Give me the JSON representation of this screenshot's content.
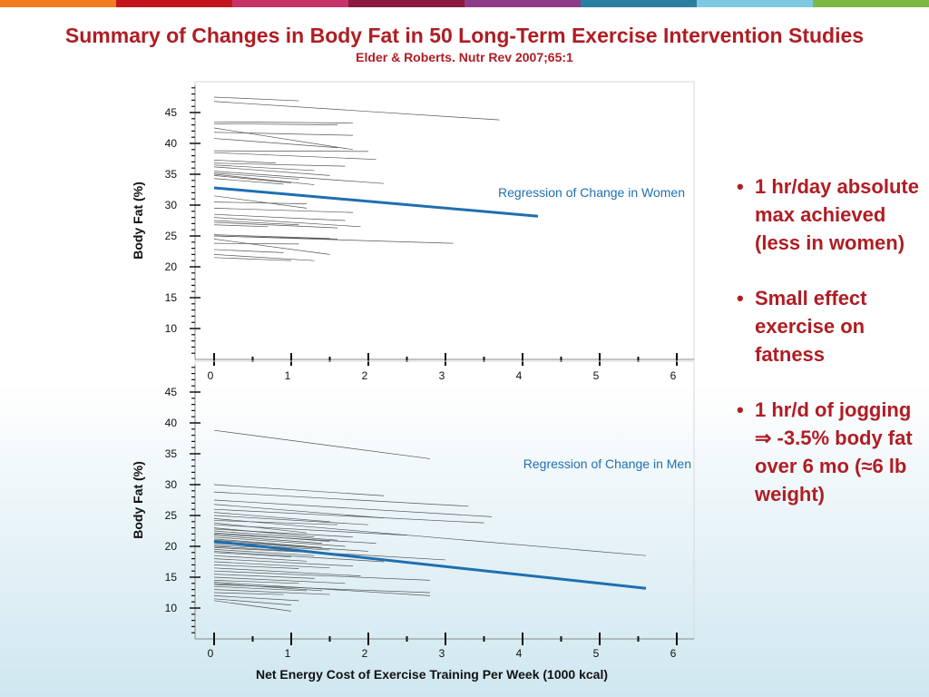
{
  "header": {
    "color_bar": [
      "#f47c20",
      "#c4161c",
      "#c8346a",
      "#8c1a3c",
      "#8e3b8a",
      "#2a7fa0",
      "#7ec8e3",
      "#7db843"
    ]
  },
  "slide": {
    "title": "Summary of Changes in Body Fat in 50 Long-Term Exercise Intervention Studies",
    "subtitle": "Elder & Roberts. Nutr Rev 2007;65:1"
  },
  "bullets": {
    "items": [
      "1 hr/day absolute max achieved (less in women)",
      "Small effect exercise on fatness",
      "1 hr/d of jogging ⇒ -3.5% body fat over 6 mo (≈6 lb weight)"
    ],
    "bullet_char": "•"
  },
  "chart_data": [
    {
      "type": "line",
      "panel": "women",
      "xlabel": "",
      "ylabel": "Body Fat (%)",
      "xlim": [
        0,
        6
      ],
      "ylim": [
        5,
        50
      ],
      "x_ticks": [
        "0",
        "1",
        "2",
        "3",
        "4",
        "5",
        "6"
      ],
      "y_ticks": [
        "10",
        "15",
        "20",
        "25",
        "30",
        "35",
        "40",
        "45"
      ],
      "regression": {
        "label": "Regression of Change in Women",
        "x": [
          0,
          4.2
        ],
        "y": [
          32.8,
          28.2
        ],
        "color": "#1f6fb0"
      },
      "studies": [
        [
          0,
          47.5,
          1.1,
          46.9
        ],
        [
          0,
          46.8,
          3.7,
          43.8
        ],
        [
          0,
          43.5,
          1.8,
          43.3
        ],
        [
          0,
          43.2,
          1.6,
          43.0
        ],
        [
          0,
          42.5,
          1.8,
          39.0
        ],
        [
          0,
          41.8,
          1.8,
          41.3
        ],
        [
          0,
          40.8,
          1.6,
          39.3
        ],
        [
          0,
          38.8,
          2.0,
          38.7
        ],
        [
          0,
          38.5,
          2.1,
          37.4
        ],
        [
          0,
          37.3,
          0.8,
          36.8
        ],
        [
          0,
          36.8,
          1.7,
          36.3
        ],
        [
          0,
          36.5,
          1.3,
          35.6
        ],
        [
          0,
          36.2,
          1.5,
          34.8
        ],
        [
          0,
          35.5,
          2.2,
          33.5
        ],
        [
          0,
          35.2,
          1.1,
          34.2
        ],
        [
          0,
          35.0,
          1.3,
          33.3
        ],
        [
          0,
          34.8,
          1.0,
          33.6
        ],
        [
          0,
          34.3,
          0.9,
          33.4
        ],
        [
          0,
          31.5,
          1.2,
          29.5
        ],
        [
          0,
          30.5,
          1.2,
          30.2
        ],
        [
          0,
          29.5,
          1.8,
          28.8
        ],
        [
          0,
          28.5,
          1.7,
          27.5
        ],
        [
          0,
          28.0,
          1.9,
          26.5
        ],
        [
          0,
          27.5,
          1.1,
          26.8
        ],
        [
          0,
          27.2,
          1.6,
          26.3
        ],
        [
          0,
          26.8,
          0.7,
          26.5
        ],
        [
          0,
          25.2,
          1.5,
          24.6
        ],
        [
          0,
          25.0,
          3.1,
          23.8
        ],
        [
          0,
          25.0,
          1.6,
          24.5
        ],
        [
          0,
          24.5,
          1.5,
          22.0
        ],
        [
          0,
          23.8,
          1.1,
          23.7
        ],
        [
          0,
          22.8,
          0.9,
          22.3
        ],
        [
          0,
          22.0,
          1.3,
          21.0
        ],
        [
          0,
          21.5,
          1.0,
          21.0
        ]
      ]
    },
    {
      "type": "line",
      "panel": "men",
      "xlabel": "Net Energy Cost of Exercise Training Per Week (1000 kcal)",
      "ylabel": "Body Fat (%)",
      "xlim": [
        0,
        6
      ],
      "ylim": [
        5,
        50
      ],
      "x_ticks": [
        "0",
        "1",
        "2",
        "3",
        "4",
        "5",
        "6"
      ],
      "y_ticks": [
        "10",
        "15",
        "20",
        "25",
        "30",
        "35",
        "40",
        "45"
      ],
      "regression": {
        "label": "Regression of Change in Men",
        "x": [
          0,
          5.6
        ],
        "y": [
          20.8,
          13.2
        ],
        "color": "#1f6fb0"
      },
      "studies": [
        [
          0,
          38.8,
          2.8,
          34.2
        ],
        [
          0,
          30.0,
          2.2,
          28.2
        ],
        [
          0,
          28.8,
          3.3,
          26.5
        ],
        [
          0,
          27.5,
          3.6,
          24.8
        ],
        [
          0,
          26.8,
          2.2,
          24.6
        ],
        [
          0,
          26.0,
          3.5,
          23.8
        ],
        [
          0,
          25.5,
          1.5,
          24.0
        ],
        [
          0,
          25.0,
          2.0,
          23.5
        ],
        [
          0,
          24.5,
          5.6,
          18.5
        ],
        [
          0,
          24.2,
          1.6,
          23.5
        ],
        [
          0,
          23.8,
          1.2,
          22.2
        ],
        [
          0,
          23.5,
          2.5,
          21.8
        ],
        [
          0,
          23.0,
          1.3,
          21.5
        ],
        [
          0,
          22.8,
          1.8,
          21.5
        ],
        [
          0,
          22.5,
          1.6,
          21.0
        ],
        [
          0,
          22.2,
          1.5,
          20.8
        ],
        [
          0,
          22.0,
          2.1,
          20.5
        ],
        [
          0,
          21.8,
          1.4,
          20.5
        ],
        [
          0,
          21.5,
          1.7,
          20.0
        ],
        [
          0,
          21.2,
          1.2,
          20.0
        ],
        [
          0,
          21.0,
          1.4,
          19.8
        ],
        [
          0,
          20.8,
          2.0,
          19.2
        ],
        [
          0,
          20.5,
          1.5,
          19.4
        ],
        [
          0,
          20.2,
          1.1,
          19.5
        ],
        [
          0,
          20.0,
          3.0,
          17.8
        ],
        [
          0,
          19.8,
          1.6,
          18.8
        ],
        [
          0,
          19.5,
          1.3,
          18.5
        ],
        [
          0,
          19.2,
          2.2,
          17.5
        ],
        [
          0,
          19.0,
          1.0,
          18.3
        ],
        [
          0,
          18.5,
          1.2,
          17.6
        ],
        [
          0,
          18.0,
          1.8,
          16.8
        ],
        [
          0,
          17.5,
          1.5,
          16.5
        ],
        [
          0,
          17.0,
          1.1,
          16.4
        ],
        [
          0,
          16.5,
          1.9,
          15.2
        ],
        [
          0,
          16.0,
          2.8,
          14.5
        ],
        [
          0,
          15.5,
          1.3,
          14.8
        ],
        [
          0,
          15.0,
          1.7,
          14.0
        ],
        [
          0,
          14.5,
          1.1,
          14.0
        ],
        [
          0,
          14.2,
          2.8,
          12.0
        ],
        [
          0,
          14.0,
          1.4,
          12.8
        ],
        [
          0,
          13.8,
          2.8,
          12.5
        ],
        [
          0,
          13.5,
          1.2,
          12.8
        ],
        [
          0,
          13.0,
          1.5,
          12.2
        ],
        [
          0,
          12.5,
          0.9,
          12.2
        ],
        [
          0,
          12.0,
          1.1,
          11.2
        ],
        [
          0,
          11.5,
          1.0,
          10.5
        ],
        [
          0,
          11.2,
          1.0,
          9.5
        ]
      ]
    }
  ]
}
